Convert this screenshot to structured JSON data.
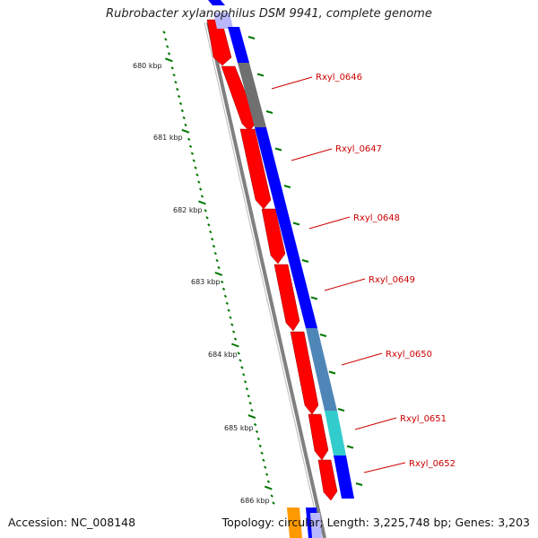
{
  "title": "Rubrobacter xylanophilus DSM 9941, complete genome",
  "accession": "Accession: NC_008148",
  "summary": "Topology: circular; Length: 3,225,748 bp; Genes: 3,203",
  "kbp_labels": [
    "680 kbp",
    "681 kbp",
    "682 kbp",
    "683 kbp",
    "684 kbp",
    "685 kbp",
    "686 kbp"
  ],
  "gene_labels": [
    "Rxyl_0646",
    "Rxyl_0647",
    "Rxyl_0648",
    "Rxyl_0649",
    "Rxyl_0650",
    "Rxyl_0651",
    "Rxyl_0652"
  ],
  "colors": {
    "forward_cds": "#ff0000",
    "blue_track": "#0000ff",
    "gray_segment": "#707070",
    "steel_segment": "#4f86b8",
    "cyan_segment": "#33cccc",
    "orange_segment": "#ff9900",
    "label_red": "#cc0000",
    "tick_green": "#007700",
    "backbone": "#808080"
  }
}
